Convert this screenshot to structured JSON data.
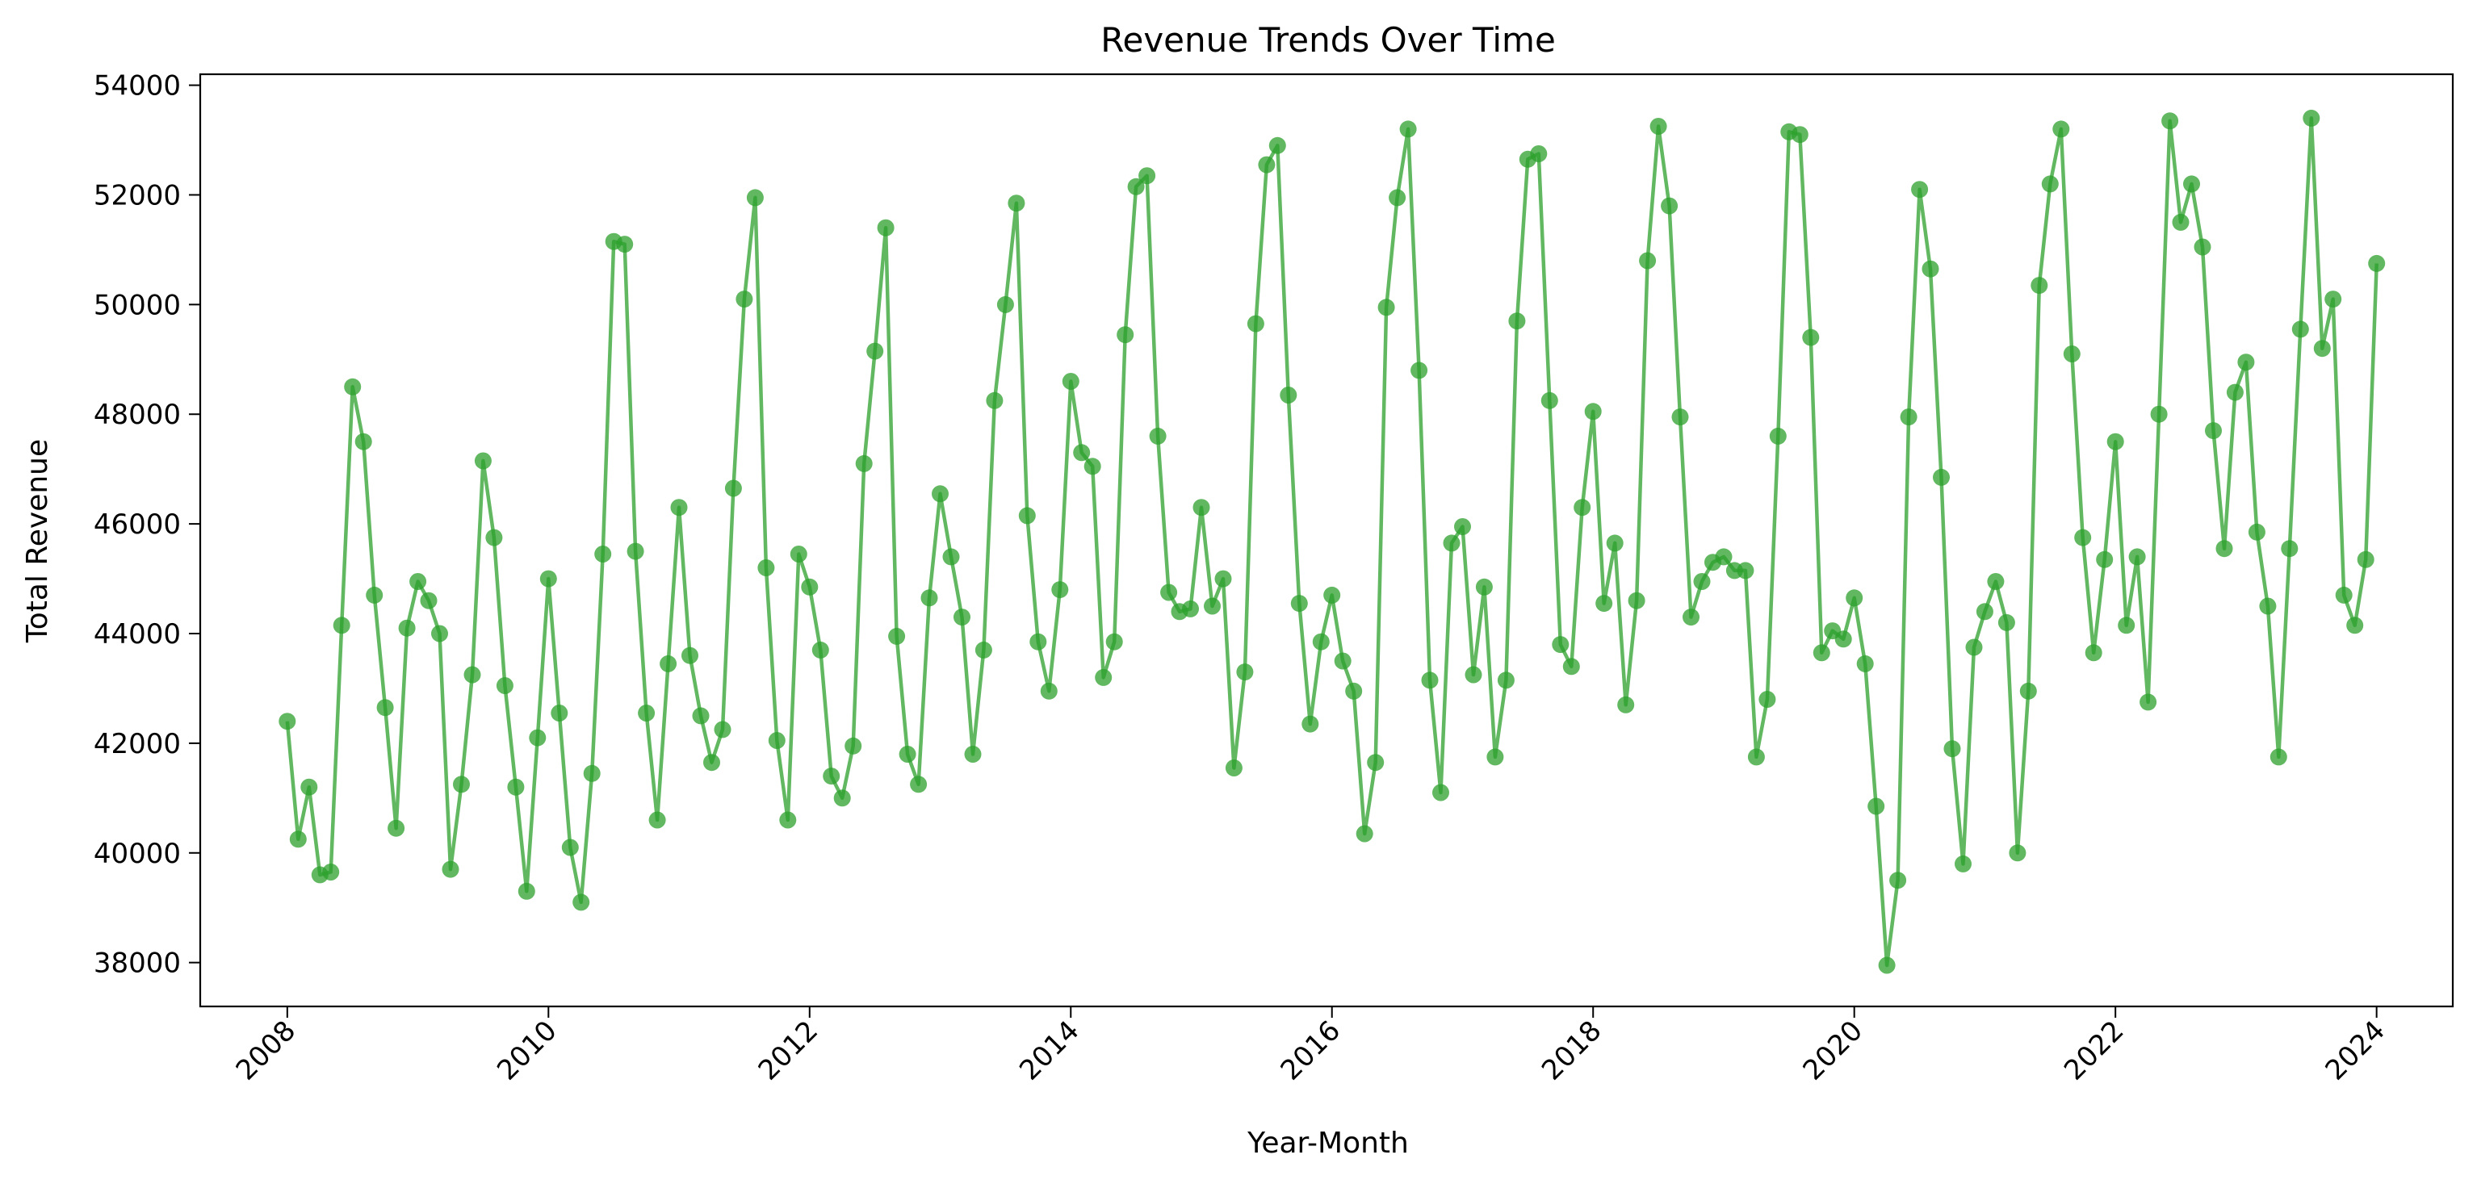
{
  "chart_data": {
    "type": "line",
    "title": "Revenue Trends Over Time",
    "xlabel": "Year-Month",
    "ylabel": "Total Revenue",
    "x_ticks": [
      "2008",
      "2010",
      "2012",
      "2014",
      "2016",
      "2018",
      "2020",
      "2022",
      "2024"
    ],
    "y_ticks": [
      38000,
      40000,
      42000,
      44000,
      46000,
      48000,
      50000,
      52000,
      54000
    ],
    "xlim": [
      "2007-05",
      "2024-08"
    ],
    "ylim": [
      37200,
      54200
    ],
    "grid": false,
    "line_color": "#2ca02c",
    "marker": "circle",
    "start": "2008-01",
    "frequency": "monthly",
    "series": [
      {
        "values": [
          42400,
          40250,
          41200,
          39600,
          39650,
          44150,
          48500,
          47500,
          44700,
          42650,
          40450,
          44100,
          44950,
          44600,
          44000,
          39700,
          41250,
          43250,
          47150,
          45750,
          43050,
          41200,
          39300,
          42100,
          45000,
          42550,
          40100,
          39100,
          41450,
          45450,
          51150,
          51100,
          45500,
          42550,
          40600,
          43450,
          46300,
          43600,
          42500,
          41650,
          42250,
          46650,
          50100,
          51950,
          45200,
          42050,
          40600,
          45450,
          44850,
          43700,
          41400,
          41000,
          41950,
          47100,
          49150,
          51400,
          43950,
          41800,
          41250,
          44650,
          46550,
          45400,
          44300,
          41800,
          43700,
          48250,
          50000,
          51850,
          46150,
          43850,
          42950,
          44800,
          48600,
          47300,
          47050,
          43200,
          43850,
          49450,
          52150,
          52350,
          47600,
          44750,
          44400,
          44450,
          46300,
          44500,
          45000,
          41550,
          43300,
          49650,
          52550,
          52900,
          48350,
          44550,
          42350,
          43850,
          44700,
          43500,
          42950,
          40350,
          41650,
          49950,
          51950,
          53200,
          48800,
          43150,
          41100,
          45650,
          45950,
          43250,
          44850,
          41750,
          43150,
          49700,
          52650,
          52750,
          48250,
          43800,
          43400,
          46300,
          48050,
          44550,
          45650,
          42700,
          44600,
          50800,
          53250,
          51800,
          47950,
          44300,
          44950,
          45300,
          45400,
          45150,
          45150,
          41750,
          42800,
          47600,
          53150,
          53100,
          49400,
          43650,
          44050,
          43900,
          44650,
          43450,
          40850,
          37950,
          39500,
          47950,
          52100,
          50650,
          46850,
          41900,
          39800,
          43750,
          44400,
          44950,
          44200,
          40000,
          42950,
          50350,
          52200,
          53200,
          49100,
          45750,
          43650,
          45350,
          47500,
          44150,
          45400,
          42750,
          48000,
          53350,
          51500,
          52200,
          51050,
          47700,
          45550,
          48400,
          48950,
          45850,
          44500,
          41750,
          45550,
          49550,
          53400,
          49200,
          50100,
          44700,
          44150,
          45350,
          50750
        ]
      }
    ]
  }
}
